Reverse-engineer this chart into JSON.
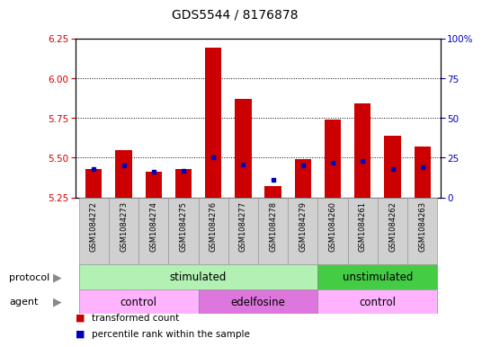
{
  "title": "GDS5544 / 8176878",
  "samples": [
    "GSM1084272",
    "GSM1084273",
    "GSM1084274",
    "GSM1084275",
    "GSM1084276",
    "GSM1084277",
    "GSM1084278",
    "GSM1084279",
    "GSM1084260",
    "GSM1084261",
    "GSM1084262",
    "GSM1084263"
  ],
  "red_values": [
    5.43,
    5.55,
    5.41,
    5.43,
    6.19,
    5.87,
    5.32,
    5.49,
    5.74,
    5.84,
    5.64,
    5.57
  ],
  "blue_pct": [
    18,
    20,
    16,
    17,
    25,
    21,
    11,
    20,
    22,
    23,
    18,
    19
  ],
  "ylim": [
    5.25,
    6.25
  ],
  "y_ticks_left": [
    5.25,
    5.5,
    5.75,
    6.0,
    6.25
  ],
  "y_ticks_right": [
    0,
    25,
    50,
    75,
    100
  ],
  "y_right_labels": [
    "0",
    "25",
    "50",
    "75",
    "100%"
  ],
  "bar_bottom": 5.25,
  "protocol_groups": [
    {
      "label": "stimulated",
      "start": 0,
      "end": 7,
      "color": "#b3f0b3"
    },
    {
      "label": "unstimulated",
      "start": 8,
      "end": 11,
      "color": "#44cc44"
    }
  ],
  "agent_groups": [
    {
      "label": "control",
      "start": 0,
      "end": 3,
      "color": "#ffb3ff"
    },
    {
      "label": "edelfosine",
      "start": 4,
      "end": 7,
      "color": "#dd77dd"
    },
    {
      "label": "control",
      "start": 8,
      "end": 11,
      "color": "#ffb3ff"
    }
  ],
  "bar_color": "#cc0000",
  "blue_color": "#0000bb",
  "bg_color": "#ffffff",
  "tick_color_left": "#cc0000",
  "tick_color_right": "#0000bb",
  "arrow_color": "#888888"
}
